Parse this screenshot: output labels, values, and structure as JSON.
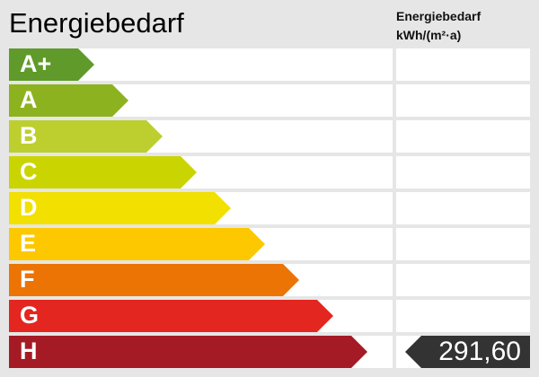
{
  "title": "Energiebedarf",
  "column_header": {
    "line1": "Energiebedarf",
    "line2": "kWh/(m²·a)"
  },
  "classes": [
    {
      "label": "A+",
      "color": "#5f9a2a"
    },
    {
      "label": "A",
      "color": "#8db21f"
    },
    {
      "label": "B",
      "color": "#bccf2f"
    },
    {
      "label": "C",
      "color": "#cad400"
    },
    {
      "label": "D",
      "color": "#f2e000"
    },
    {
      "label": "E",
      "color": "#fdc800"
    },
    {
      "label": "F",
      "color": "#ec7405"
    },
    {
      "label": "G",
      "color": "#e3261f"
    },
    {
      "label": "H",
      "color": "#a51b25"
    }
  ],
  "current": {
    "class": "H",
    "value": "291,60",
    "color": "#333333"
  }
}
